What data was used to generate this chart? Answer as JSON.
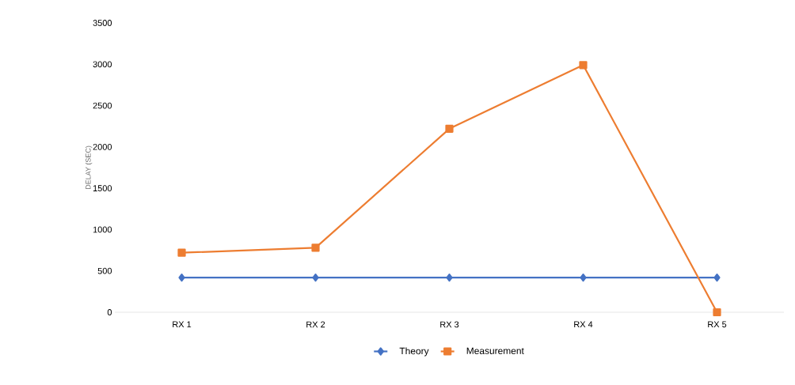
{
  "chart_data": {
    "type": "line",
    "ylabel": "DELAY (SEC)",
    "categories": [
      "RX 1",
      "RX 2",
      "RX 3",
      "RX 4",
      "RX 5"
    ],
    "series": [
      {
        "name": "Theory",
        "color": "#4472c4",
        "marker": "diamond",
        "values": [
          420,
          420,
          420,
          420,
          420
        ]
      },
      {
        "name": "Measurement",
        "color": "#ed7d31",
        "marker": "square",
        "values": [
          720,
          780,
          2220,
          2990,
          0
        ]
      }
    ],
    "ylim": [
      0,
      3500
    ],
    "yticks": [
      0,
      500,
      1000,
      1500,
      2000,
      2500,
      3000,
      3500
    ],
    "legend": "bottom"
  }
}
